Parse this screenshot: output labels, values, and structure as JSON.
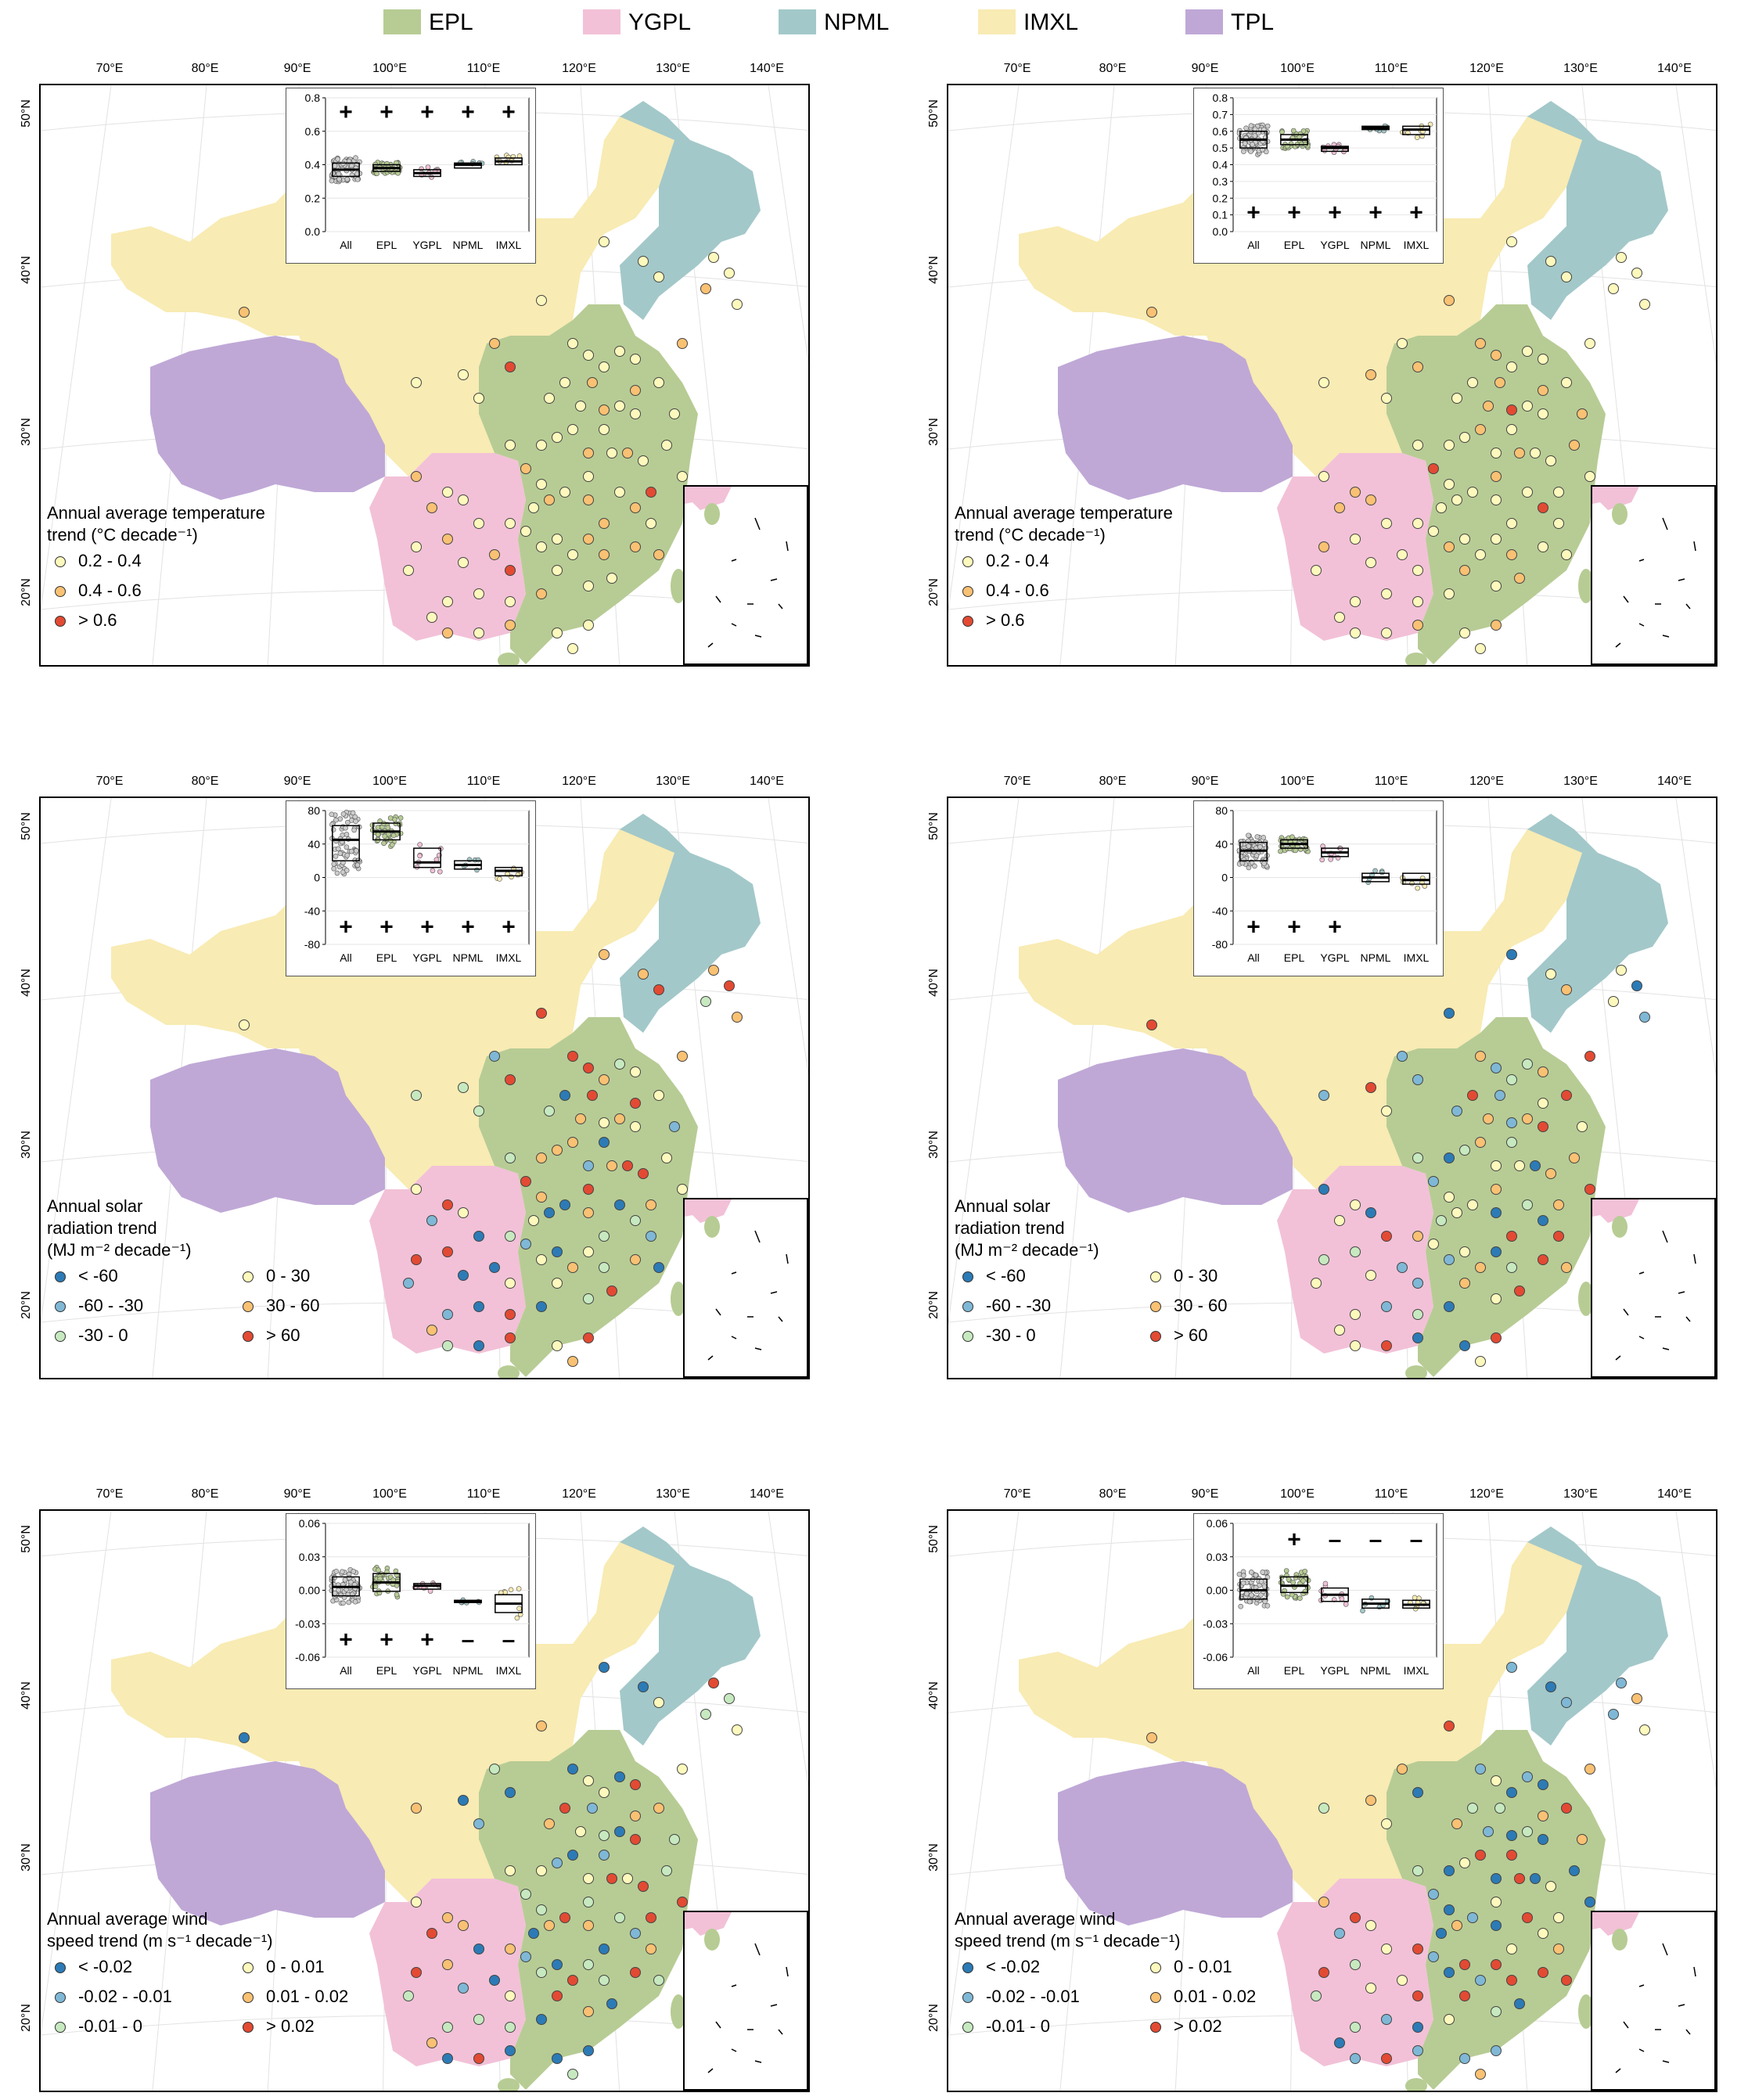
{
  "legend": {
    "items": [
      {
        "label": "EPL",
        "color": "#b7cc94"
      },
      {
        "label": "YGPL",
        "color": "#f2c1d7"
      },
      {
        "label": "NPML",
        "color": "#a3c8c9"
      },
      {
        "label": "IMXL",
        "color": "#f8ebb3"
      },
      {
        "label": "TPL",
        "color": "#bfa8d6"
      }
    ]
  },
  "axes": {
    "lon_labels": [
      "70°E",
      "80°E",
      "90°E",
      "100°E",
      "110°E",
      "120°E",
      "130°E",
      "140°E"
    ],
    "lat_labels": [
      "50°N",
      "40°N",
      "30°N",
      "20°N"
    ]
  },
  "box_categories": [
    "All",
    "EPL",
    "YGPL",
    "NPML",
    "IMXL"
  ],
  "panels": [
    {
      "id": "temp-left",
      "legend_title": "Annual average  temperature\ntrend (°C decade⁻¹)",
      "classes": [
        {
          "label": "0.2 - 0.4",
          "color": "#fdf9bd"
        },
        {
          "label": "0.4 - 0.6",
          "color": "#f9c173"
        },
        {
          "label": "> 0.6",
          "color": "#e34a33"
        }
      ],
      "yticks": [
        "0.0",
        "0.2",
        "0.4",
        "0.6",
        "0.8"
      ],
      "ylim": [
        0,
        0.8
      ],
      "medians": [
        0.37,
        0.38,
        0.35,
        0.4,
        0.42
      ],
      "box_ranges": [
        [
          0.33,
          0.41
        ],
        [
          0.36,
          0.4
        ],
        [
          0.33,
          0.37
        ],
        [
          0.38,
          0.41
        ],
        [
          0.4,
          0.44
        ]
      ],
      "signif": [
        "+",
        "+",
        "+",
        "+",
        "+"
      ],
      "signif_y": 0.71
    },
    {
      "id": "temp-right",
      "legend_title": "Annual average  temperature\ntrend (°C decade⁻¹)",
      "classes": [
        {
          "label": "0.2 - 0.4",
          "color": "#fdf9bd"
        },
        {
          "label": "0.4 - 0.6",
          "color": "#f9c173"
        },
        {
          "label": "> 0.6",
          "color": "#e34a33"
        }
      ],
      "yticks": [
        "0.0",
        "0.1",
        "0.2",
        "0.3",
        "0.4",
        "0.5",
        "0.6",
        "0.7",
        "0.8"
      ],
      "ylim": [
        0,
        0.8
      ],
      "medians": [
        0.55,
        0.55,
        0.5,
        0.62,
        0.61
      ],
      "box_ranges": [
        [
          0.5,
          0.6
        ],
        [
          0.52,
          0.58
        ],
        [
          0.48,
          0.51
        ],
        [
          0.61,
          0.63
        ],
        [
          0.58,
          0.63
        ]
      ],
      "signif": [
        "+",
        "+",
        "+",
        "+",
        "+"
      ],
      "signif_y": 0.11
    },
    {
      "id": "solar-left",
      "legend_title": "Annual solar\nradiation trend\n(MJ m⁻² decade⁻¹)",
      "classes": [
        {
          "label": "< -60",
          "color": "#2c7bb6"
        },
        {
          "label": "-60 - -30",
          "color": "#7fb8d6"
        },
        {
          "label": "-30 - 0",
          "color": "#c7e9c0"
        },
        {
          "label": "0 - 30",
          "color": "#fdf9bd"
        },
        {
          "label": "30 - 60",
          "color": "#f9c173"
        },
        {
          "label": "> 60",
          "color": "#e34a33"
        }
      ],
      "yticks": [
        "-80",
        "-40",
        "0",
        "40",
        "80"
      ],
      "ylim": [
        -80,
        80
      ],
      "medians": [
        45,
        55,
        18,
        15,
        8
      ],
      "box_ranges": [
        [
          20,
          62
        ],
        [
          45,
          65
        ],
        [
          12,
          35
        ],
        [
          10,
          20
        ],
        [
          2,
          12
        ]
      ],
      "signif": [
        "+",
        "+",
        "+",
        "+",
        "+"
      ],
      "signif_y": -60
    },
    {
      "id": "solar-right",
      "legend_title": "Annual solar\nradiation trend\n(MJ m⁻² decade⁻¹)",
      "classes": [
        {
          "label": "< -60",
          "color": "#2c7bb6"
        },
        {
          "label": "-60 - -30",
          "color": "#7fb8d6"
        },
        {
          "label": "-30 - 0",
          "color": "#c7e9c0"
        },
        {
          "label": "0 - 30",
          "color": "#fdf9bd"
        },
        {
          "label": "30 - 60",
          "color": "#f9c173"
        },
        {
          "label": "> 60",
          "color": "#e34a33"
        }
      ],
      "yticks": [
        "-80",
        "-40",
        "0",
        "40",
        "80"
      ],
      "ylim": [
        -80,
        80
      ],
      "medians": [
        32,
        40,
        30,
        0,
        -3
      ],
      "box_ranges": [
        [
          20,
          42
        ],
        [
          35,
          45
        ],
        [
          25,
          35
        ],
        [
          -5,
          5
        ],
        [
          -8,
          5
        ]
      ],
      "signif": [
        "+",
        "+",
        "+",
        "",
        ""
      ],
      "signif_y": -60
    },
    {
      "id": "wind-left",
      "legend_title": "Annual average wind\nspeed trend (m s⁻¹ decade⁻¹)",
      "classes": [
        {
          "label": "< -0.02",
          "color": "#2c7bb6"
        },
        {
          "label": "-0.02 - -0.01",
          "color": "#7fb8d6"
        },
        {
          "label": "-0.01 - 0",
          "color": "#c7e9c0"
        },
        {
          "label": "0 - 0.01",
          "color": "#fdf9bd"
        },
        {
          "label": "0.01 - 0.02",
          "color": "#f9c173"
        },
        {
          "label": "> 0.02",
          "color": "#e34a33"
        }
      ],
      "yticks": [
        "-0.06",
        "-0.03",
        "0.00",
        "0.03",
        "0.06"
      ],
      "ylim": [
        -0.06,
        0.06
      ],
      "medians": [
        0.003,
        0.007,
        0.004,
        -0.01,
        -0.012
      ],
      "box_ranges": [
        [
          -0.005,
          0.012
        ],
        [
          -0.001,
          0.015
        ],
        [
          0.001,
          0.006
        ],
        [
          -0.011,
          -0.009
        ],
        [
          -0.02,
          -0.004
        ]
      ],
      "signif": [
        "+",
        "+",
        "+",
        "–",
        "–"
      ],
      "signif_y": -0.045
    },
    {
      "id": "wind-right",
      "legend_title": "Annual average wind\nspeed trend (m s⁻¹ decade⁻¹)",
      "classes": [
        {
          "label": "< -0.02",
          "color": "#2c7bb6"
        },
        {
          "label": "-0.02 - -0.01",
          "color": "#7fb8d6"
        },
        {
          "label": "-0.01 - 0",
          "color": "#c7e9c0"
        },
        {
          "label": "0 - 0.01",
          "color": "#fdf9bd"
        },
        {
          "label": "0.01 - 0.02",
          "color": "#f9c173"
        },
        {
          "label": "> 0.02",
          "color": "#e34a33"
        }
      ],
      "yticks": [
        "-0.06",
        "-0.03",
        "0.00",
        "0.03",
        "0.06"
      ],
      "ylim": [
        -0.06,
        0.06
      ],
      "medians": [
        0.0,
        0.004,
        -0.004,
        -0.012,
        -0.013
      ],
      "box_ranges": [
        [
          -0.008,
          0.01
        ],
        [
          -0.002,
          0.012
        ],
        [
          -0.01,
          0.002
        ],
        [
          -0.016,
          -0.008
        ],
        [
          -0.016,
          -0.009
        ]
      ],
      "signif": [
        "",
        "+",
        "–",
        "–",
        "–"
      ],
      "signif_y": 0.045
    }
  ]
}
